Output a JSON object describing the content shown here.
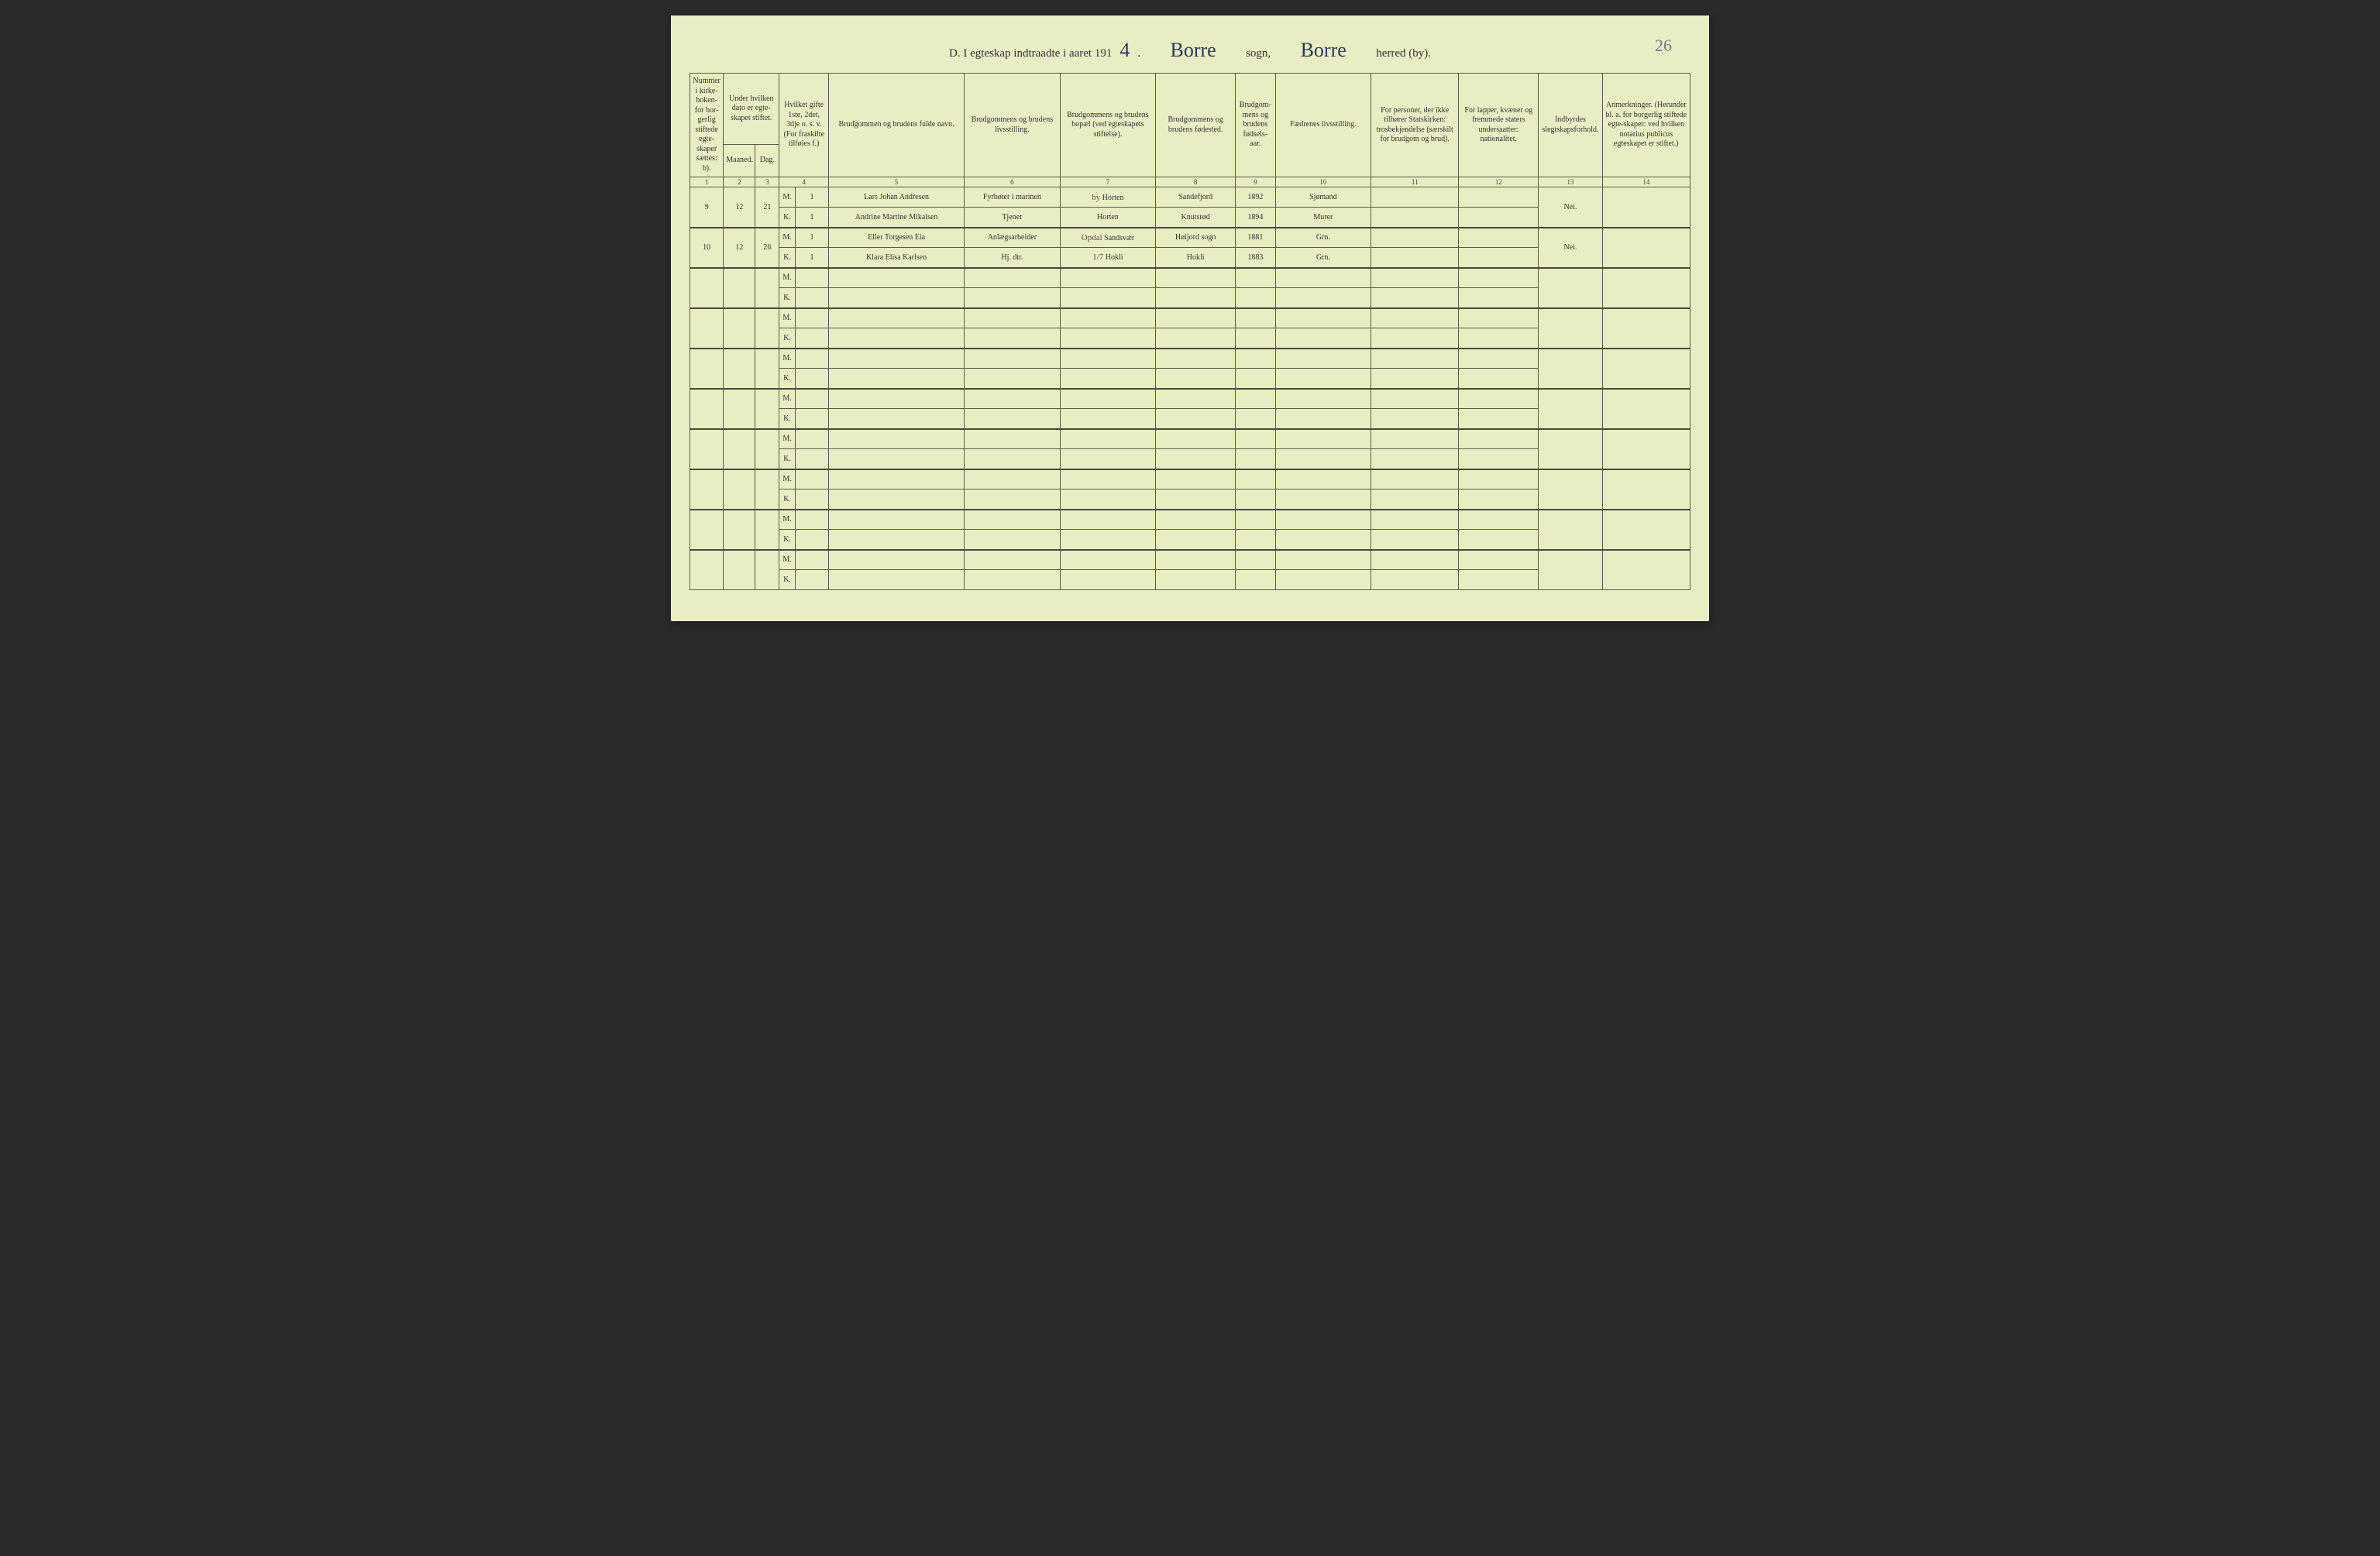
{
  "page_number_hand": "26",
  "title": {
    "prefix": "D.  I egteskap indtraadte i aaret 191",
    "year_hand": "4",
    "period": ".",
    "sogn_hand": "Borre",
    "sogn_label": "sogn,",
    "herred_hand": "Borre",
    "herred_label": "herred (by)."
  },
  "headers": {
    "c1": "Nummer i kirke-boken-for bor-gerlig stiftede egte-skaper sættes: b).",
    "c2_top": "Under hvilken dato er egte-skapet stiftet.",
    "c2_m": "Maaned.",
    "c2_d": "Dag.",
    "c4": "Hvilket gifte 1ste, 2det, 3dje o. s. v. (For fraskilte tilføies f.)",
    "c5": "Brudgommen og brudens fulde navn.",
    "c6": "Brudgommens og brudens livsstilling.",
    "c7": "Brudgommens og brudens bopæl (ved egteskapets stiftelse).",
    "c8": "Brudgommens og brudens fødested.",
    "c9": "Brudgom-mens og brudens fødsels-aar.",
    "c10": "Fædrenes livsstilling.",
    "c11": "For personer, der ikke tilhører Statskirken: trosbekjendelse (særskilt for brudgom og brud).",
    "c12": "For lapper, kvæner og fremmede staters undersaatter: nationalitet.",
    "c13": "Indbyrdes slegtskapsforhold.",
    "c14": "Anmerkninger. (Herunder bl. a. for borgerlig stiftede egte-skaper: ved hvilken notarius publicus egteskapet er stiftet.)"
  },
  "colnums": [
    "1",
    "2",
    "3",
    "4",
    "5",
    "6",
    "7",
    "8",
    "9",
    "10",
    "11",
    "12",
    "13",
    "14"
  ],
  "mk": {
    "m": "M.",
    "k": "K."
  },
  "rows": [
    {
      "num": "9",
      "maaned": "12",
      "dag": "21",
      "m": {
        "gifte": "1",
        "navn": "Lars Johan Andresen",
        "stilling": "Fyrbøter i marinen",
        "bopal_prefix": "by",
        "bopal": "Horten",
        "fodested": "Sandefjord",
        "aar": "1892",
        "faedre": "Sjømand"
      },
      "k": {
        "gifte": "1",
        "navn": "Andrine Martine Mikalsen",
        "stilling": "Tjener",
        "bopal": "Horten",
        "fodested": "Knutsrød",
        "aar": "1894",
        "faedre": "Murer"
      },
      "slegt": "Nei."
    },
    {
      "num": "10",
      "maaned": "12",
      "dag": "26",
      "m": {
        "gifte": "1",
        "navn": "Eller Torgesen Eia",
        "stilling": "Anlægsarbeider",
        "bopal_prefix": "Opdal",
        "bopal": "Sandsvær",
        "fodested": "Høijord sogn",
        "aar": "1881",
        "faedre": "Grn."
      },
      "k": {
        "gifte": "1",
        "navn": "Klara Elisa Karlsen",
        "stilling": "Hj. dtr.",
        "bopal_prefix": "1/7",
        "bopal": "Hokli",
        "fodested": "Hokli",
        "aar": "1883",
        "faedre": "Grn."
      },
      "slegt": "Nei."
    }
  ],
  "blank_pairs": 8,
  "colors": {
    "paper": "#e8edc4",
    "rule": "#5a5a4a",
    "ink_print": "#333333",
    "ink_hand": "#2a3a5a"
  }
}
